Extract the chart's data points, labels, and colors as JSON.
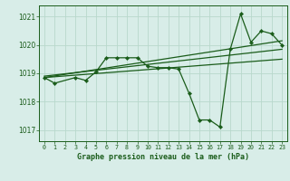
{
  "title": "Graphe pression niveau de la mer (hPa)",
  "bg_color": "#d8ede8",
  "grid_color": "#b8d8cc",
  "line_color": "#1a5c1a",
  "text_color": "#1a5c1a",
  "xlim": [
    -0.5,
    23.5
  ],
  "ylim": [
    1016.6,
    1021.4
  ],
  "yticks": [
    1017,
    1018,
    1019,
    1020,
    1021
  ],
  "xtick_labels": [
    "0",
    "1",
    "2",
    "3",
    "4",
    "5",
    "6",
    "7",
    "8",
    "9",
    "10",
    "11",
    "12",
    "13",
    "14",
    "15",
    "16",
    "17",
    "18",
    "19",
    "20",
    "21",
    "22",
    "23"
  ],
  "series_main": {
    "x": [
      0,
      1,
      3,
      4,
      5,
      6,
      7,
      8,
      9,
      10,
      11,
      12,
      13,
      14,
      15,
      16,
      17,
      18,
      19,
      20,
      21,
      22,
      23
    ],
    "y": [
      1018.85,
      1018.65,
      1018.85,
      1018.75,
      1019.05,
      1019.55,
      1019.55,
      1019.55,
      1019.55,
      1019.25,
      1019.2,
      1019.2,
      1019.15,
      1018.3,
      1017.35,
      1017.35,
      1017.1,
      1019.85,
      1021.1,
      1020.1,
      1020.5,
      1020.4,
      1020.0
    ]
  },
  "series_trend1": {
    "x": [
      0,
      23
    ],
    "y": [
      1018.85,
      1020.15
    ]
  },
  "series_trend2": {
    "x": [
      0,
      23
    ],
    "y": [
      1018.85,
      1019.5
    ]
  },
  "series_trend3": {
    "x": [
      0,
      23
    ],
    "y": [
      1018.9,
      1019.85
    ]
  }
}
